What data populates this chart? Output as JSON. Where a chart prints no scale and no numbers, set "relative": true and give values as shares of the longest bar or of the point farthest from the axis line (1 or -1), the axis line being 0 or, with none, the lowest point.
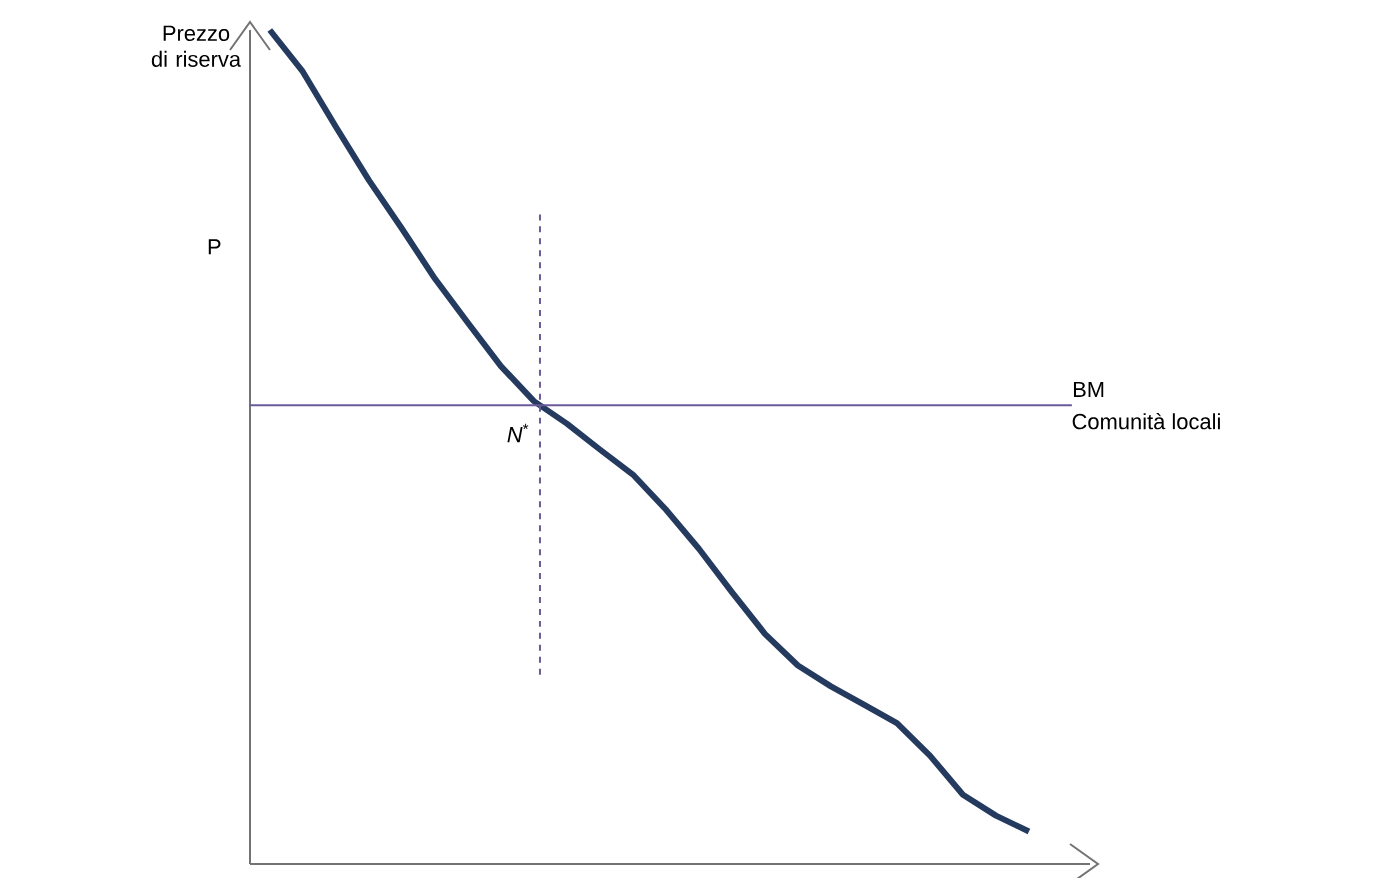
{
  "chart_data": {
    "type": "line",
    "relative": true,
    "ylabel": "Prezzo di riserva",
    "categories": [
      null,
      null,
      null,
      null,
      null,
      null,
      null,
      null,
      null,
      null,
      null,
      null,
      null,
      null,
      null,
      null,
      null,
      null,
      null,
      null,
      null,
      null,
      null,
      null
    ],
    "series": [
      {
        "color": "#243a5e",
        "values": [
          1.0,
          0.95,
          0.884,
          0.82,
          0.762,
          0.702,
          0.649,
          0.597,
          0.555,
          0.528,
          0.497,
          0.467,
          0.425,
          0.378,
          0.326,
          0.276,
          0.238,
          0.213,
          0.191,
          0.169,
          0.13,
          0.083,
          0.058,
          0.039
        ]
      }
    ],
    "ref_lines": [
      {
        "axis": "y",
        "value": 0.55,
        "label": "BM",
        "color": "#6a5a9a"
      }
    ],
    "annotations": [
      "Comunità locali",
      "P",
      "*N*$^{*}$"
    ]
  }
}
